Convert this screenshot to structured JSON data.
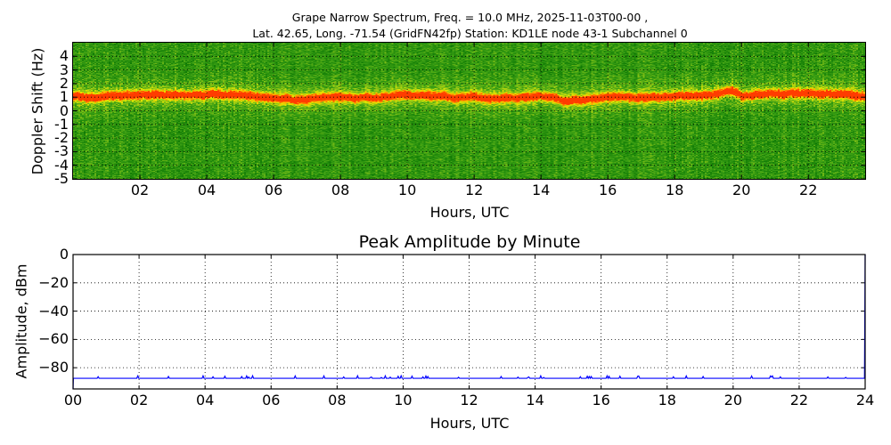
{
  "figure": {
    "title_line1": "Grape Narrow Spectrum, Freq. = 10.0 MHz, 2025-11-03T00-00 ,",
    "title_line2": "Lat.  42.65, Long. -71.54 (GridFN42fp) Station: KD1LE node 43-1 Subchannel 0"
  },
  "spectrogram": {
    "ylabel": "Doppler Shift (Hz)",
    "xlabel": "Hours, UTC",
    "yticks": [
      "4",
      "3",
      "2",
      "1",
      "0",
      "-1",
      "-2",
      "-3",
      "-4",
      "-5"
    ],
    "xticks": [
      "02",
      "04",
      "06",
      "08",
      "10",
      "12",
      "14",
      "16",
      "18",
      "20",
      "22"
    ]
  },
  "amplitude": {
    "title": "Peak Amplitude by Minute",
    "ylabel": "Amplitude, dBm",
    "xlabel": "Hours, UTC",
    "yticks": [
      "0",
      "−20",
      "−40",
      "−60",
      "−80"
    ],
    "xticks": [
      "00",
      "02",
      "04",
      "06",
      "08",
      "10",
      "12",
      "14",
      "16",
      "18",
      "20",
      "22",
      "24"
    ],
    "line_color": "#0000ff"
  },
  "chart_data": [
    {
      "type": "heatmap",
      "title": "Grape Narrow Spectrum, Freq. = 10.0 MHz, 2025-11-03T00-00 , Lat.  42.65, Long. -71.54 (GridFN42fp) Station: KD1LE node 43-1 Subchannel 0",
      "xlabel": "Hours, UTC",
      "ylabel": "Doppler Shift (Hz)",
      "xlim": [
        0,
        23.7
      ],
      "ylim": [
        -5,
        5
      ],
      "x_ticks": [
        2,
        4,
        6,
        8,
        10,
        12,
        14,
        16,
        18,
        20,
        22
      ],
      "y_ticks": [
        -5,
        -4,
        -3,
        -2,
        -1,
        0,
        1,
        2,
        3,
        4
      ],
      "grid": true,
      "colormap": "green-yellow-red (low to high power)",
      "peak_doppler_trace": {
        "hours": [
          0,
          1,
          2,
          3,
          4,
          5,
          6,
          7,
          8,
          9,
          10,
          11,
          12,
          13,
          14,
          15,
          16,
          17,
          18,
          19,
          19.7,
          20,
          21,
          22,
          23,
          23.7
        ],
        "doppler_hz": [
          1.1,
          1.1,
          1.15,
          1.2,
          1.25,
          1.1,
          0.95,
          0.8,
          1.0,
          1.0,
          1.2,
          1.1,
          1.0,
          1.0,
          1.05,
          0.8,
          1.05,
          1.0,
          1.0,
          1.2,
          1.6,
          1.1,
          1.3,
          1.3,
          1.2,
          1.1
        ]
      }
    },
    {
      "type": "line",
      "title": "Peak Amplitude by Minute",
      "xlabel": "Hours, UTC",
      "ylabel": "Amplitude, dBm",
      "xlim": [
        0,
        24
      ],
      "ylim": [
        -95,
        0
      ],
      "x_ticks": [
        0,
        2,
        4,
        6,
        8,
        10,
        12,
        14,
        16,
        18,
        20,
        22,
        24
      ],
      "y_ticks": [
        -80,
        -60,
        -40,
        -20,
        0
      ],
      "grid": true,
      "series": [
        {
          "name": "Peak Amplitude",
          "color": "#0000ff",
          "x": [
            0,
            0.01,
            0.2,
            2,
            3.3,
            4,
            5.7,
            6,
            8,
            10,
            12,
            14,
            16,
            16.9,
            18,
            20,
            22,
            23.5,
            23.98,
            24
          ],
          "values": [
            -95,
            -87.5,
            -86,
            -87.5,
            -86.5,
            -87.5,
            -86.5,
            -87.5,
            -87.5,
            -87.5,
            -87.5,
            -87.5,
            -87.5,
            -86.5,
            -87.5,
            -87.5,
            -87.5,
            -87,
            -87.5,
            0
          ]
        }
      ]
    }
  ]
}
